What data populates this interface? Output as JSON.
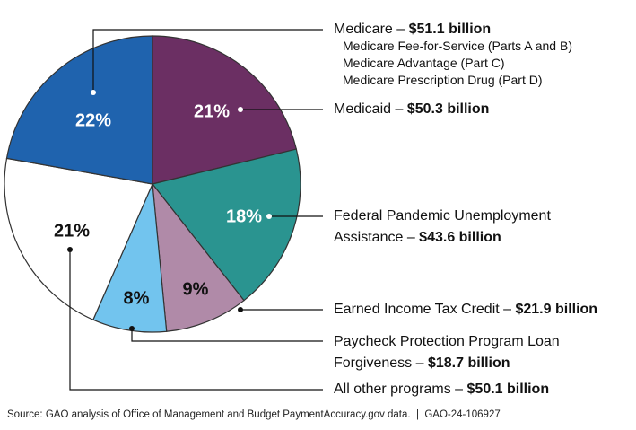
{
  "chart_data": {
    "type": "pie",
    "categories": [
      "Medicaid –",
      "Federal Pandemic Unemployment Assistance –",
      "Earned Income Tax Credit –",
      "Paycheck Protection Program Loan Forgiveness –",
      "All other programs –",
      "Medicare –"
    ],
    "values": [
      21,
      18,
      9,
      8,
      21,
      22
    ],
    "value_labels": [
      "21%",
      "18%",
      "9%",
      "8%",
      "21%",
      "22%"
    ],
    "amount_labels": [
      "$50.3 billion",
      "$43.6 billion",
      "$21.9 billion",
      "$18.7 billion",
      "$50.1 billion",
      "$51.1 billion"
    ],
    "colors": [
      "#6b2f63",
      "#2a9490",
      "#b08aa8",
      "#72c4ee",
      "#ffffff",
      "#1f63ae"
    ],
    "medicare_parts": [
      "Medicare Fee-for-Service (Parts A and B)",
      "Medicare Advantage (Part C)",
      "Medicare Prescription Drug (Part D)"
    ],
    "source": "Source: GAO analysis of Office of Management and Budget PaymentAccuracy.gov data.  |  GAO-24-106927"
  }
}
